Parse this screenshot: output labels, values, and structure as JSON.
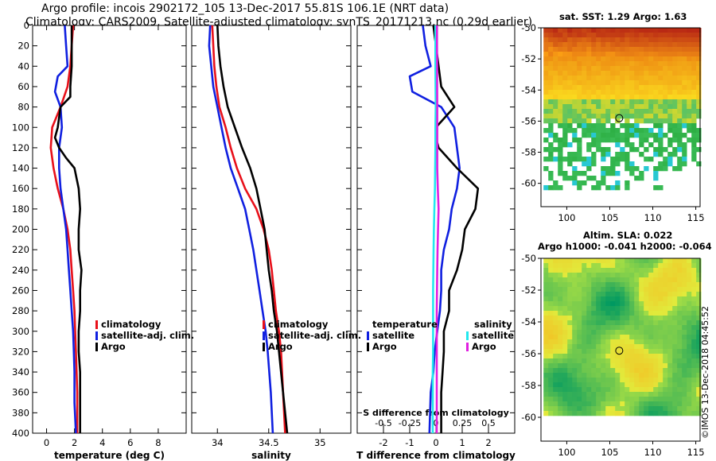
{
  "header": {
    "line1": "Argo profile: incois 2902172_105 13-Dec-2017 55.81S 106.1E (NRT data)",
    "line2": "Climatology: CARS2009. Satellite-adjusted climatology: synTS_20171213.nc (0.29d earlier)"
  },
  "credit": "©IMOS 13-Dec-2018 04:45:52",
  "colors": {
    "climatology": "#e8101a",
    "satellite": "#1020e0",
    "argo": "#000000",
    "satellite_s": "#22e8ee",
    "argo_s": "#e020e0"
  },
  "chart_data": [
    {
      "type": "line",
      "name": "temperature",
      "xlabel": "temperature (deg C)",
      "ylabel": "",
      "xlim": [
        -1,
        10
      ],
      "ylim": [
        400,
        0
      ],
      "xticks": [
        "0",
        "2",
        "4",
        "6",
        "8"
      ],
      "xtick_values": [
        0,
        2,
        4,
        6,
        8
      ],
      "yticks": [
        "0",
        "20",
        "40",
        "60",
        "80",
        "100",
        "120",
        "140",
        "160",
        "180",
        "200",
        "220",
        "240",
        "260",
        "280",
        "300",
        "320",
        "340",
        "360",
        "380",
        "400"
      ],
      "ytick_values": [
        0,
        20,
        40,
        60,
        80,
        100,
        120,
        140,
        160,
        180,
        200,
        220,
        240,
        260,
        280,
        300,
        320,
        340,
        360,
        380,
        400
      ],
      "legend": [
        "climatology",
        "satellite-adj. clim.",
        "Argo"
      ],
      "series": [
        {
          "name": "climatology",
          "color": "#e8101a",
          "x": [
            1.9,
            1.8,
            1.7,
            1.5,
            1.0,
            0.4,
            0.3,
            0.5,
            0.8,
            1.2,
            1.5,
            1.7,
            1.8,
            1.9,
            2.0,
            2.05,
            2.1,
            2.15,
            2.2,
            2.2,
            2.2
          ],
          "y": [
            0,
            20,
            40,
            60,
            80,
            100,
            120,
            140,
            160,
            180,
            200,
            220,
            240,
            260,
            280,
            300,
            320,
            340,
            360,
            380,
            400
          ]
        },
        {
          "name": "satellite-adj. clim.",
          "color": "#1020e0",
          "x": [
            1.3,
            1.4,
            1.5,
            0.8,
            0.6,
            1.0,
            1.1,
            0.9,
            0.9,
            1.0,
            1.2,
            1.4,
            1.5,
            1.6,
            1.7,
            1.8,
            1.9,
            1.95,
            2.0,
            2.0,
            2.1
          ],
          "y": [
            0,
            20,
            40,
            50,
            65,
            80,
            100,
            120,
            140,
            160,
            180,
            200,
            220,
            240,
            260,
            280,
            300,
            320,
            340,
            370,
            400
          ]
        },
        {
          "name": "Argo",
          "color": "#000000",
          "x": [
            1.8,
            1.8,
            1.8,
            1.7,
            1.7,
            1.0,
            0.8,
            0.6,
            0.9,
            1.4,
            2.0,
            2.3,
            2.4,
            2.3,
            2.3,
            2.5,
            2.4,
            2.4,
            2.3,
            2.3,
            2.4,
            2.4,
            2.4
          ],
          "y": [
            0,
            20,
            40,
            60,
            70,
            80,
            100,
            110,
            120,
            130,
            140,
            160,
            180,
            200,
            220,
            240,
            260,
            280,
            300,
            320,
            340,
            370,
            400
          ]
        }
      ]
    },
    {
      "type": "line",
      "name": "salinity",
      "xlabel": "salinity",
      "ylabel": "",
      "xlim": [
        33.75,
        35.3
      ],
      "ylim": [
        400,
        0
      ],
      "xticks": [
        "34",
        "34.5",
        "35"
      ],
      "xtick_values": [
        34,
        34.5,
        35
      ],
      "legend": [
        "climatology",
        "satellite-adj. clim.",
        "Argo"
      ],
      "series": [
        {
          "name": "climatology",
          "color": "#e8101a",
          "x": [
            33.95,
            33.96,
            33.97,
            33.99,
            34.02,
            34.08,
            34.13,
            34.19,
            34.27,
            34.38,
            34.45,
            34.5,
            34.53,
            34.55,
            34.57,
            34.6,
            34.62,
            34.64,
            34.66
          ],
          "y": [
            0,
            20,
            40,
            60,
            80,
            100,
            120,
            140,
            160,
            180,
            200,
            220,
            240,
            260,
            280,
            300,
            320,
            360,
            400
          ]
        },
        {
          "name": "satellite-adj. clim.",
          "color": "#1020e0",
          "x": [
            33.93,
            33.92,
            33.94,
            33.96,
            34.0,
            34.04,
            34.08,
            34.13,
            34.2,
            34.27,
            34.31,
            34.35,
            34.38,
            34.41,
            34.44,
            34.47,
            34.49,
            34.52,
            34.54
          ],
          "y": [
            0,
            20,
            40,
            60,
            80,
            100,
            120,
            140,
            160,
            180,
            200,
            220,
            240,
            260,
            280,
            300,
            320,
            360,
            400
          ]
        },
        {
          "name": "Argo",
          "color": "#000000",
          "x": [
            34.0,
            34.01,
            34.03,
            34.06,
            34.1,
            34.17,
            34.24,
            34.32,
            34.38,
            34.42,
            34.46,
            34.48,
            34.5,
            34.53,
            34.55,
            34.58,
            34.6,
            34.64,
            34.68
          ],
          "y": [
            0,
            20,
            40,
            60,
            80,
            100,
            120,
            140,
            160,
            180,
            200,
            220,
            240,
            260,
            280,
            300,
            320,
            360,
            400
          ]
        }
      ]
    },
    {
      "type": "line",
      "name": "difference",
      "xlabel": "T difference from climatology",
      "ylabel": "",
      "xlim": [
        -3,
        3
      ],
      "ylim": [
        400,
        0
      ],
      "xticks": [
        "-2",
        "-1",
        "0",
        "1",
        "2"
      ],
      "xtick_values": [
        -2,
        -1,
        0,
        1,
        2
      ],
      "secondary_label": "S difference from climatology",
      "secondary_ticks": [
        "-0.5",
        "-0.25",
        "0",
        "0.25",
        "0.5"
      ],
      "secondary_tick_values": [
        -0.5,
        -0.25,
        0,
        0.25,
        0.5
      ],
      "legend_temperature": {
        "title": "temperature",
        "entries": [
          "satellite",
          "Argo"
        ]
      },
      "legend_salinity": {
        "title": "salinity",
        "entries": [
          "satellite",
          "Argo"
        ]
      },
      "series": [
        {
          "name": "T satellite",
          "color": "#1020e0",
          "x": [
            -0.5,
            -0.4,
            -0.2,
            -1.0,
            -0.9,
            0.2,
            0.7,
            0.8,
            0.9,
            0.8,
            0.6,
            0.5,
            0.3,
            0.2,
            0.2,
            0.15,
            0.05,
            -0.05,
            -0.1,
            -0.2,
            -0.25
          ],
          "y": [
            0,
            20,
            40,
            50,
            65,
            80,
            100,
            120,
            140,
            160,
            180,
            200,
            220,
            240,
            260,
            280,
            300,
            320,
            340,
            360,
            400
          ]
        },
        {
          "name": "T Argo",
          "color": "#000000",
          "x": [
            -0.1,
            0.0,
            0.1,
            0.2,
            0.7,
            0.0,
            0.0,
            0.1,
            0.8,
            1.6,
            1.5,
            1.1,
            1.0,
            0.8,
            0.5,
            0.5,
            0.3,
            0.3,
            0.25,
            0.2,
            0.2
          ],
          "y": [
            0,
            20,
            40,
            60,
            80,
            100,
            110,
            120,
            140,
            160,
            180,
            200,
            220,
            240,
            260,
            280,
            300,
            320,
            340,
            360,
            400
          ]
        },
        {
          "name": "S satellite",
          "color": "#22e8ee",
          "x": [
            -0.02,
            -0.02,
            -0.02,
            -0.015,
            -0.01,
            -0.02,
            -0.02,
            -0.03,
            -0.04,
            -0.06,
            -0.08,
            -0.09,
            -0.1,
            -0.11,
            -0.11,
            -0.11,
            -0.11,
            -0.12,
            -0.12,
            -0.12
          ],
          "y": [
            0,
            20,
            40,
            60,
            80,
            100,
            120,
            140,
            160,
            180,
            200,
            220,
            240,
            260,
            280,
            300,
            320,
            340,
            360,
            400
          ]
        },
        {
          "name": "S Argo",
          "color": "#e020e0",
          "x": [
            0.04,
            0.04,
            0.045,
            0.045,
            0.05,
            0.05,
            0.05,
            0.05,
            0.07,
            0.1,
            0.08,
            0.06,
            0.05,
            0.04,
            0.03,
            0.03,
            0.03,
            0.03,
            0.03,
            0.03
          ],
          "y": [
            0,
            20,
            40,
            60,
            80,
            100,
            120,
            140,
            160,
            180,
            200,
            220,
            240,
            260,
            280,
            300,
            320,
            340,
            360,
            400
          ]
        }
      ]
    },
    {
      "type": "heatmap",
      "name": "sst_map",
      "title": "sat. SST: 1.29 Argo: 1.63",
      "xlim": [
        97,
        115.5
      ],
      "ylim": [
        -61.5,
        -50
      ],
      "xticks": [
        "100",
        "105",
        "110",
        "115"
      ],
      "xtick_values": [
        100,
        105,
        110,
        115
      ],
      "yticks": [
        "-50",
        "-52",
        "-54",
        "-56",
        "-58",
        "-60"
      ],
      "ytick_values": [
        -50,
        -52,
        -54,
        -56,
        -58,
        -60
      ],
      "marker": {
        "lon": 106.1,
        "lat": -55.81
      }
    },
    {
      "type": "heatmap",
      "name": "sla_map",
      "title": "Altim. SLA: 0.022",
      "subtitle": "Argo h1000: -0.041 h2000: -0.064",
      "xlim": [
        97,
        115.5
      ],
      "ylim": [
        -61.5,
        -50
      ],
      "xticks": [
        "100",
        "105",
        "110",
        "115"
      ],
      "xtick_values": [
        100,
        105,
        110,
        115
      ],
      "yticks": [
        "-50",
        "-52",
        "-54",
        "-56",
        "-58",
        "-60"
      ],
      "ytick_values": [
        -50,
        -52,
        -54,
        -56,
        -58,
        -60
      ],
      "marker": {
        "lon": 106.1,
        "lat": -55.81
      }
    }
  ]
}
